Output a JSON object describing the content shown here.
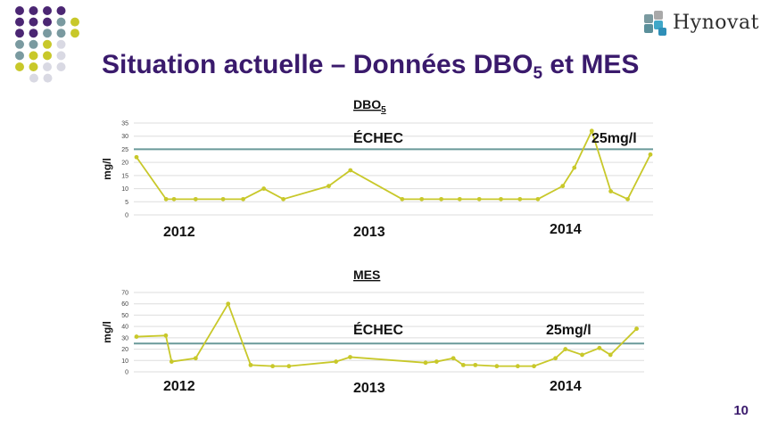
{
  "slide": {
    "title_main": "Situation actuelle – Données DBO",
    "title_sub": "5",
    "title_tail": " et MES",
    "logo_text": "Hynovat",
    "page_number": "10"
  },
  "colors": {
    "title": "#3a1a6c",
    "series": "#c8c82a",
    "threshold": "#6a9a9a",
    "grid": "#dedede",
    "dots": [
      "#4b2673",
      "#7a9aa0",
      "#c8c82a",
      "#d9d9e3"
    ]
  },
  "chart_data": [
    {
      "type": "line",
      "title": "DBO",
      "title_sub": "5",
      "ylabel": "mg/l",
      "ylim": [
        0,
        35
      ],
      "yticks": [
        0,
        5,
        10,
        15,
        20,
        25,
        30,
        35
      ],
      "grid": true,
      "series": [
        {
          "values": [
            22,
            6,
            6,
            6,
            6,
            6,
            10,
            6,
            11,
            17,
            6,
            6,
            6,
            6,
            6,
            6,
            6,
            6,
            11,
            18,
            32,
            9,
            6,
            23
          ]
        }
      ],
      "threshold": {
        "value": 25,
        "label": "25mg/l"
      },
      "status_label": "ÉCHEC",
      "year_labels": [
        "2012",
        "2013",
        "2014"
      ]
    },
    {
      "type": "line",
      "title": "MES",
      "ylabel": "mg/l",
      "ylim": [
        0,
        70
      ],
      "yticks": [
        0,
        10,
        20,
        30,
        40,
        50,
        60,
        70
      ],
      "grid": true,
      "series": [
        {
          "values": [
            31,
            32,
            9,
            12,
            60,
            6,
            5,
            5,
            9,
            13,
            8,
            9,
            12,
            6,
            6,
            5,
            5,
            5,
            12,
            20,
            15,
            21,
            15,
            38
          ]
        }
      ],
      "threshold": {
        "value": 25,
        "label": "25mg/l"
      },
      "status_label": "ÉCHEC",
      "year_labels": [
        "2012",
        "2013",
        "2014"
      ]
    }
  ]
}
